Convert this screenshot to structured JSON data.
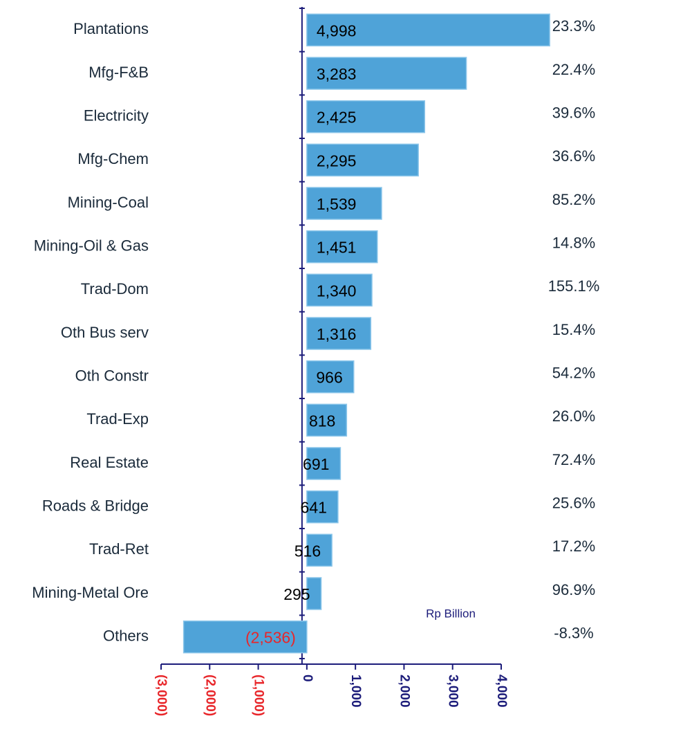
{
  "chart_data": {
    "type": "bar",
    "orientation": "horizontal",
    "categories": [
      "Plantations",
      "Mfg-F&B",
      "Electricity",
      "Mfg-Chem",
      "Mining-Coal",
      "Mining-Oil & Gas",
      "Trad-Dom",
      "Oth Bus serv",
      "Oth Constr",
      "Trad-Exp",
      "Real Estate",
      "Roads & Bridge",
      "Trad-Ret",
      "Mining-Metal Ore",
      "Others"
    ],
    "values": [
      4998,
      3283,
      2425,
      2295,
      1539,
      1451,
      1340,
      1316,
      966,
      818,
      691,
      641,
      516,
      295,
      -2536
    ],
    "value_labels": [
      "4,998",
      "3,283",
      "2,425",
      "2,295",
      "1,539",
      "1,451",
      "1,340",
      "1,316",
      "966",
      "818",
      "691",
      "641",
      "516",
      "295",
      "(2,536)"
    ],
    "annotations": [
      "23.3%",
      "22.4%",
      "39.6%",
      "36.6%",
      "85.2%",
      "14.8%",
      "155.1%",
      "15.4%",
      "54.2%",
      "26.0%",
      "72.4%",
      "25.6%",
      "17.2%",
      "96.9%",
      "-8.3%"
    ],
    "xlabel": "Rp Billion",
    "color": "#4fa3d8",
    "negative_color": "#e8262a",
    "axis_color": "#1c1c7a",
    "xlim": [
      -3000,
      4000
    ],
    "xticks": [
      {
        "value": -3000,
        "label": "(3,000)"
      },
      {
        "value": -2000,
        "label": "(2,000)"
      },
      {
        "value": -1000,
        "label": "(1,000)"
      },
      0,
      {
        "value": 1000,
        "label": "1,000"
      },
      {
        "value": 2000,
        "label": "2,000"
      },
      {
        "value": 3000,
        "label": "3,000"
      },
      {
        "value": 4000,
        "label": "4,000"
      }
    ]
  }
}
